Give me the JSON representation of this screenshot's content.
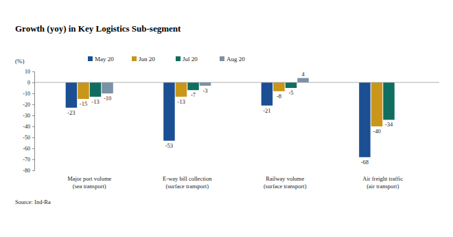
{
  "chart_data": {
    "type": "bar",
    "title": "Growth (yoy) in Key Logistics Sub-segment",
    "y_label": "(%)",
    "annotations": [
      "Source: Ind-Ra"
    ],
    "categories": [
      "Major port volume (sea transport)",
      "E-way bill collection (surface transport)",
      "Railway volume (surface transport)",
      "Air freight traffic (air transport)"
    ],
    "series": [
      {
        "name": "May 20",
        "color": "#1b4f93",
        "values": [
          -23,
          -53,
          -21,
          -68
        ]
      },
      {
        "name": "Jun 20",
        "color": "#c9961a",
        "values": [
          -15,
          -13,
          -8,
          -40
        ]
      },
      {
        "name": "Jul 20",
        "color": "#0f6e5f",
        "values": [
          -13,
          -7,
          -5,
          -34
        ]
      },
      {
        "name": "Aug 20",
        "color": "#7a91a7",
        "values": [
          -10,
          -3,
          4,
          null
        ]
      }
    ],
    "ylim": [
      -80,
      10
    ],
    "yticks": [
      -80,
      -70,
      -60,
      -50,
      -40,
      -30,
      -20,
      -10,
      0,
      10
    ],
    "grid": false,
    "legend": "top",
    "data_labels": true
  }
}
